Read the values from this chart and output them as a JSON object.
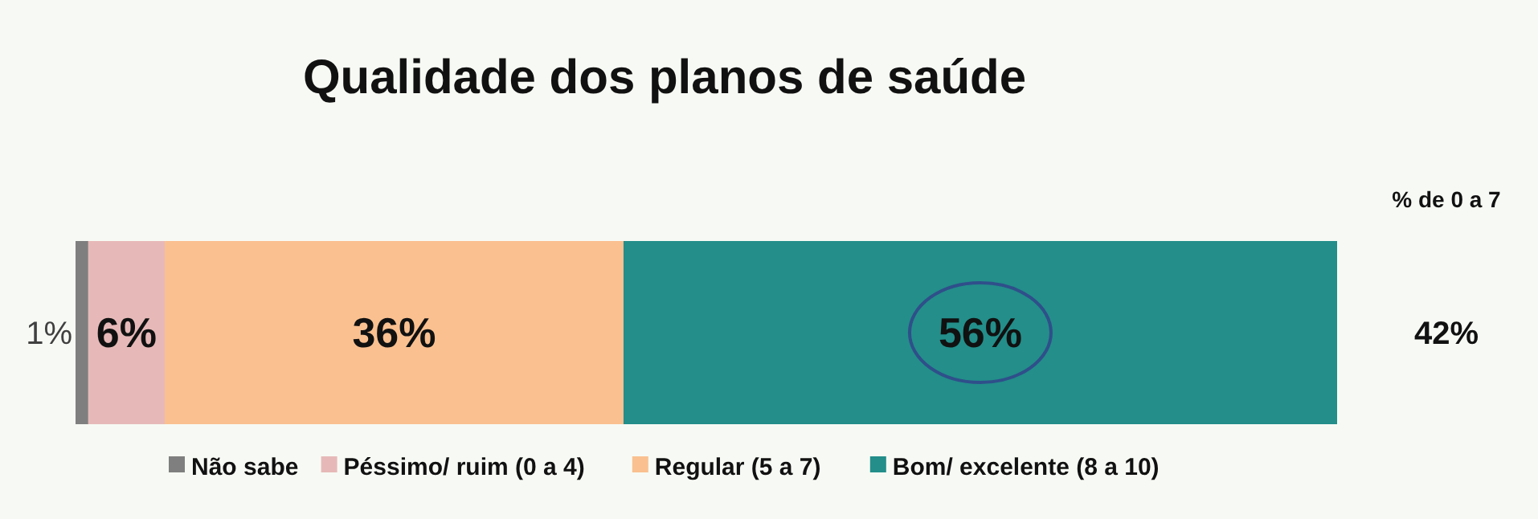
{
  "chart_data": {
    "type": "bar",
    "title": "Qualidade dos planos de saúde",
    "orientation": "horizontal",
    "stacked": true,
    "categories": [
      null
    ],
    "series": [
      {
        "name": "Não sabe",
        "color": "#7f7f7f",
        "values": [
          1
        ],
        "value_labels": [
          "1%"
        ]
      },
      {
        "name": "Péssimo/ ruim (0 a 4)",
        "color": "#e6b9b8",
        "values": [
          6
        ],
        "value_labels": [
          "6%"
        ]
      },
      {
        "name": "Regular (5 a 7)",
        "color": "#fac090",
        "values": [
          36
        ],
        "value_labels": [
          "36%"
        ]
      },
      {
        "name": "Bom/ excelente (8 a 10)",
        "color": "#238e8a",
        "values": [
          56
        ],
        "value_labels": [
          "56%"
        ]
      }
    ],
    "legend": "bottom",
    "annotations": [
      "% de 0 a 7",
      "42%"
    ]
  }
}
